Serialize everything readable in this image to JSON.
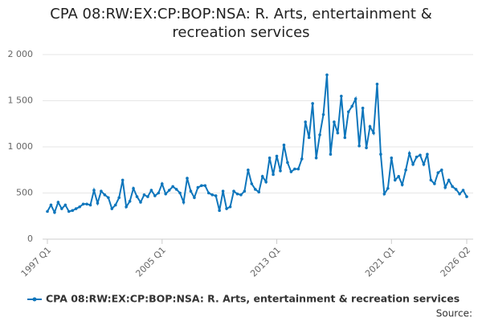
{
  "chart_data": {
    "type": "line",
    "title": "CPA 08:RW:EX:CP:BOP:NSA: R. Arts, entertainment & recreation services",
    "source": "Source:",
    "categories": [
      "1997 Q1",
      null,
      null,
      null,
      null,
      null,
      null,
      null,
      null,
      null,
      null,
      null,
      null,
      null,
      null,
      null,
      null,
      null,
      null,
      null,
      null,
      null,
      null,
      null,
      null,
      null,
      null,
      null,
      null,
      null,
      null,
      null,
      "2005 Q1",
      null,
      null,
      null,
      null,
      null,
      null,
      null,
      null,
      null,
      null,
      null,
      null,
      null,
      null,
      null,
      null,
      null,
      null,
      null,
      null,
      null,
      null,
      null,
      null,
      null,
      null,
      null,
      null,
      null,
      null,
      null,
      "2013 Q1",
      null,
      null,
      null,
      null,
      null,
      null,
      null,
      null,
      null,
      null,
      null,
      null,
      null,
      null,
      null,
      null,
      null,
      null,
      null,
      null,
      null,
      null,
      null,
      null,
      null,
      null,
      null,
      null,
      null,
      null,
      null,
      "2021 Q1",
      null,
      null,
      null,
      null,
      null,
      null,
      null,
      null,
      null,
      null,
      null,
      null,
      null,
      null,
      null,
      null,
      null,
      null,
      null,
      null,
      "2026 Q2"
    ],
    "series": [
      {
        "name": "CPA 08:RW:EX:CP:BOP:NSA: R. Arts, entertainment & recreation services",
        "color": "#0e76bc",
        "values": [
          300,
          370,
          290,
          400,
          330,
          370,
          300,
          310,
          330,
          350,
          380,
          380,
          370,
          530,
          390,
          520,
          480,
          450,
          330,
          370,
          450,
          640,
          350,
          410,
          550,
          460,
          400,
          480,
          460,
          530,
          470,
          500,
          600,
          490,
          530,
          570,
          540,
          500,
          400,
          660,
          520,
          450,
          560,
          580,
          580,
          500,
          480,
          470,
          310,
          520,
          330,
          350,
          520,
          490,
          480,
          520,
          750,
          600,
          540,
          510,
          680,
          620,
          880,
          700,
          900,
          740,
          1020,
          830,
          730,
          760,
          760,
          870,
          1270,
          1100,
          1470,
          880,
          1130,
          1350,
          1780,
          920,
          1270,
          1150,
          1550,
          1100,
          1380,
          1440,
          1520,
          1010,
          1420,
          990,
          1220,
          1150,
          1680,
          920,
          490,
          550,
          880,
          640,
          680,
          590,
          750,
          930,
          810,
          890,
          910,
          810,
          920,
          640,
          600,
          720,
          750,
          560,
          640,
          570,
          540,
          490,
          530,
          460
        ]
      }
    ],
    "ylim": [
      0,
      2000
    ],
    "yticks": [
      0,
      500,
      {
        "value": 1000,
        "label": "1 000"
      },
      {
        "value": 1500,
        "label": "1 500"
      },
      {
        "value": 2000,
        "label": "2 000"
      }
    ],
    "grid": true
  }
}
